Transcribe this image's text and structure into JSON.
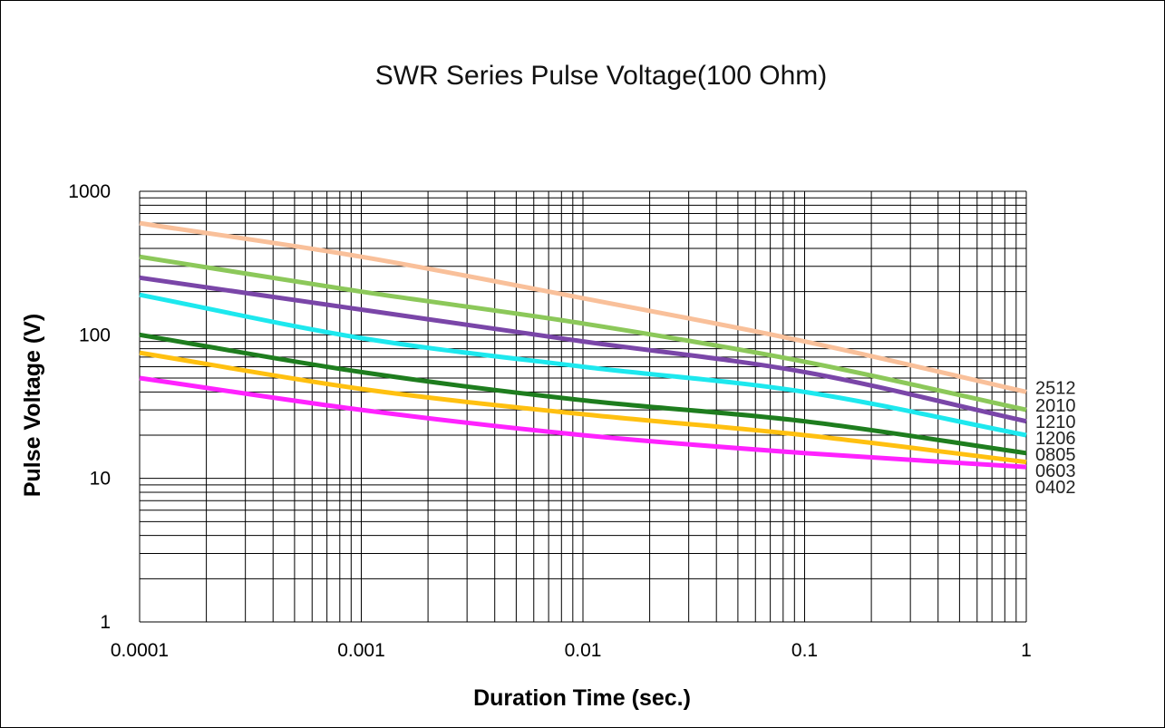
{
  "chart_data": {
    "type": "line",
    "title": "SWR Series Pulse Voltage(100 Ohm)",
    "xlabel": "Duration Time (sec.)",
    "ylabel": "Pulse Voltage (V)",
    "x_scale": "log",
    "y_scale": "log",
    "xlim": [
      0.0001,
      1
    ],
    "ylim": [
      1,
      1000
    ],
    "x_ticks": [
      0.0001,
      0.001,
      0.01,
      0.1,
      1
    ],
    "x_tick_labels": [
      "0.0001",
      "0.001",
      "0.01",
      "0.1",
      "1"
    ],
    "y_ticks": [
      1,
      10,
      100,
      1000
    ],
    "y_tick_labels": [
      "1",
      "10",
      "100",
      "1000"
    ],
    "grid": true,
    "legend_placement": "right end of lines",
    "x": [
      0.0001,
      0.001,
      0.01,
      0.1,
      1
    ],
    "series": [
      {
        "name": "2512",
        "color": "#f9c09a",
        "values": [
          600,
          350,
          180,
          90,
          40
        ]
      },
      {
        "name": "2010",
        "color": "#8cc85a",
        "values": [
          350,
          200,
          120,
          65,
          30
        ]
      },
      {
        "name": "1210",
        "color": "#7a46a8",
        "values": [
          250,
          150,
          90,
          55,
          25
        ]
      },
      {
        "name": "1206",
        "color": "#1de8ee",
        "values": [
          190,
          95,
          60,
          40,
          20
        ]
      },
      {
        "name": "0805",
        "color": "#1e7d1e",
        "values": [
          100,
          55,
          35,
          25,
          15
        ]
      },
      {
        "name": "0603",
        "color": "#ffc010",
        "values": [
          75,
          42,
          28,
          20,
          13
        ]
      },
      {
        "name": "0402",
        "color": "#ff22ff",
        "values": [
          50,
          30,
          20,
          15,
          12
        ]
      }
    ]
  }
}
